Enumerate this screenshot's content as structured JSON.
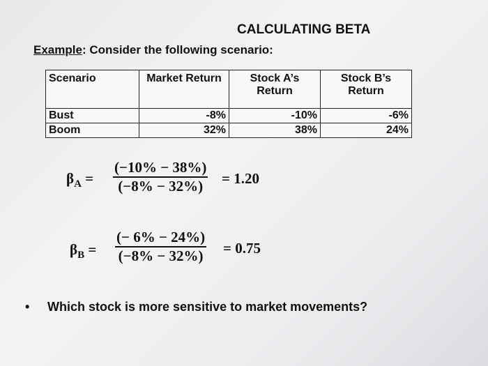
{
  "header": {
    "title": "CALCULATING BETA",
    "example_label": "Example",
    "example_text": ": Consider the following scenario:"
  },
  "table": {
    "headers": [
      "Scenario",
      "Market Return",
      "Stock A’s Return",
      "Stock B’s Return"
    ],
    "rows": [
      [
        "Bust",
        "-8%",
        "-10%",
        "-6%"
      ],
      [
        "Boom",
        "32%",
        "38%",
        "24%"
      ]
    ]
  },
  "formulas": [
    {
      "symbol": "β",
      "subscript": "A",
      "equals": "=",
      "numerator": "(−10% − 38%)",
      "denominator": "(−8% − 32%)",
      "result": "= 1.20"
    },
    {
      "symbol": "β",
      "subscript": "B",
      "equals": "=",
      "numerator": "(− 6% − 24%)",
      "denominator": "(−8% − 32%)",
      "result": "= 0.75"
    }
  ],
  "question": {
    "bullet": "•",
    "text": "Which stock is more sensitive to market movements?"
  }
}
